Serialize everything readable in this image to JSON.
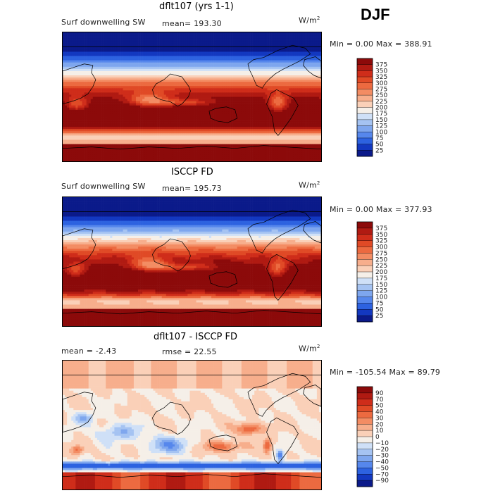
{
  "season": "DJF",
  "panels": [
    {
      "title": "dflt107 (yrs 1-1)",
      "variable": "Surf downwelling SW",
      "stat_text": "mean= 193.30",
      "units_base": "W/m",
      "units_exp": "2",
      "minmax": "Min =    0.00 Max = 388.91",
      "cmap": "abs",
      "colorbar": {
        "levels": [
          "375",
          "350",
          "325",
          "300",
          "275",
          "250",
          "225",
          "200",
          "175",
          "150",
          "125",
          "100",
          "75",
          "50",
          "25"
        ],
        "colors": [
          "#8c0a0a",
          "#b01a12",
          "#cf2d1a",
          "#e04a26",
          "#ec6a40",
          "#f38c63",
          "#f7ae8c",
          "#fad0b8",
          "#f5efe8",
          "#cfe0f7",
          "#a5c3f2",
          "#7ea6ee",
          "#5687ec",
          "#2d62e0",
          "#1338c0",
          "#0b1a8a"
        ]
      }
    },
    {
      "title": "ISCCP FD",
      "variable": "Surf downwelling SW",
      "stat_text": "mean= 195.73",
      "units_base": "W/m",
      "units_exp": "2",
      "minmax": "Min =    0.00 Max = 377.93",
      "cmap": "abs",
      "colorbar": {
        "levels": [
          "375",
          "350",
          "325",
          "300",
          "275",
          "250",
          "225",
          "200",
          "175",
          "150",
          "125",
          "100",
          "75",
          "50",
          "25"
        ],
        "colors": [
          "#8c0a0a",
          "#b01a12",
          "#cf2d1a",
          "#e04a26",
          "#ec6a40",
          "#f38c63",
          "#f7ae8c",
          "#fad0b8",
          "#f5efe8",
          "#cfe0f7",
          "#a5c3f2",
          "#7ea6ee",
          "#5687ec",
          "#2d62e0",
          "#1338c0",
          "#0b1a8a"
        ]
      }
    },
    {
      "title": "dflt107 - ISCCP FD",
      "variable": "mean =   -2.43",
      "stat_text": "rmse =  22.55",
      "units_base": "W/m",
      "units_exp": "2",
      "minmax": "Min = -105.54 Max =  89.79",
      "cmap": "diff",
      "colorbar": {
        "levels": [
          "90",
          "70",
          "50",
          "40",
          "30",
          "20",
          "10",
          "0",
          "−10",
          "−20",
          "−30",
          "−40",
          "−50",
          "−70",
          "−90"
        ],
        "colors": [
          "#8c0a0a",
          "#b01a12",
          "#cf2d1a",
          "#e04a26",
          "#ec6a40",
          "#f38c63",
          "#f7ae8c",
          "#fad0b8",
          "#f5efe8",
          "#cfe0f7",
          "#a5c3f2",
          "#7ea6ee",
          "#5687ec",
          "#2d62e0",
          "#1338c0",
          "#0b1a8a"
        ]
      }
    }
  ],
  "chart_data": [
    {
      "type": "heatmap",
      "title": "dflt107 (yrs 1-1)",
      "subtitle": "Surf downwelling SW",
      "mean": 193.3,
      "min": 0.0,
      "max": 388.91,
      "units": "W/m2",
      "season": "DJF",
      "colorbar_levels": [
        25,
        50,
        75,
        100,
        125,
        150,
        175,
        200,
        225,
        250,
        275,
        300,
        325,
        350,
        375
      ]
    },
    {
      "type": "heatmap",
      "title": "ISCCP FD",
      "subtitle": "Surf downwelling SW",
      "mean": 195.73,
      "min": 0.0,
      "max": 377.93,
      "units": "W/m2",
      "season": "DJF",
      "colorbar_levels": [
        25,
        50,
        75,
        100,
        125,
        150,
        175,
        200,
        225,
        250,
        275,
        300,
        325,
        350,
        375
      ]
    },
    {
      "type": "heatmap",
      "title": "dflt107 - ISCCP FD",
      "mean": -2.43,
      "rmse": 22.55,
      "min": -105.54,
      "max": 89.79,
      "units": "W/m2",
      "season": "DJF",
      "colorbar_levels": [
        -90,
        -70,
        -50,
        -40,
        -30,
        -20,
        -10,
        0,
        10,
        20,
        30,
        40,
        50,
        70,
        90
      ]
    }
  ]
}
